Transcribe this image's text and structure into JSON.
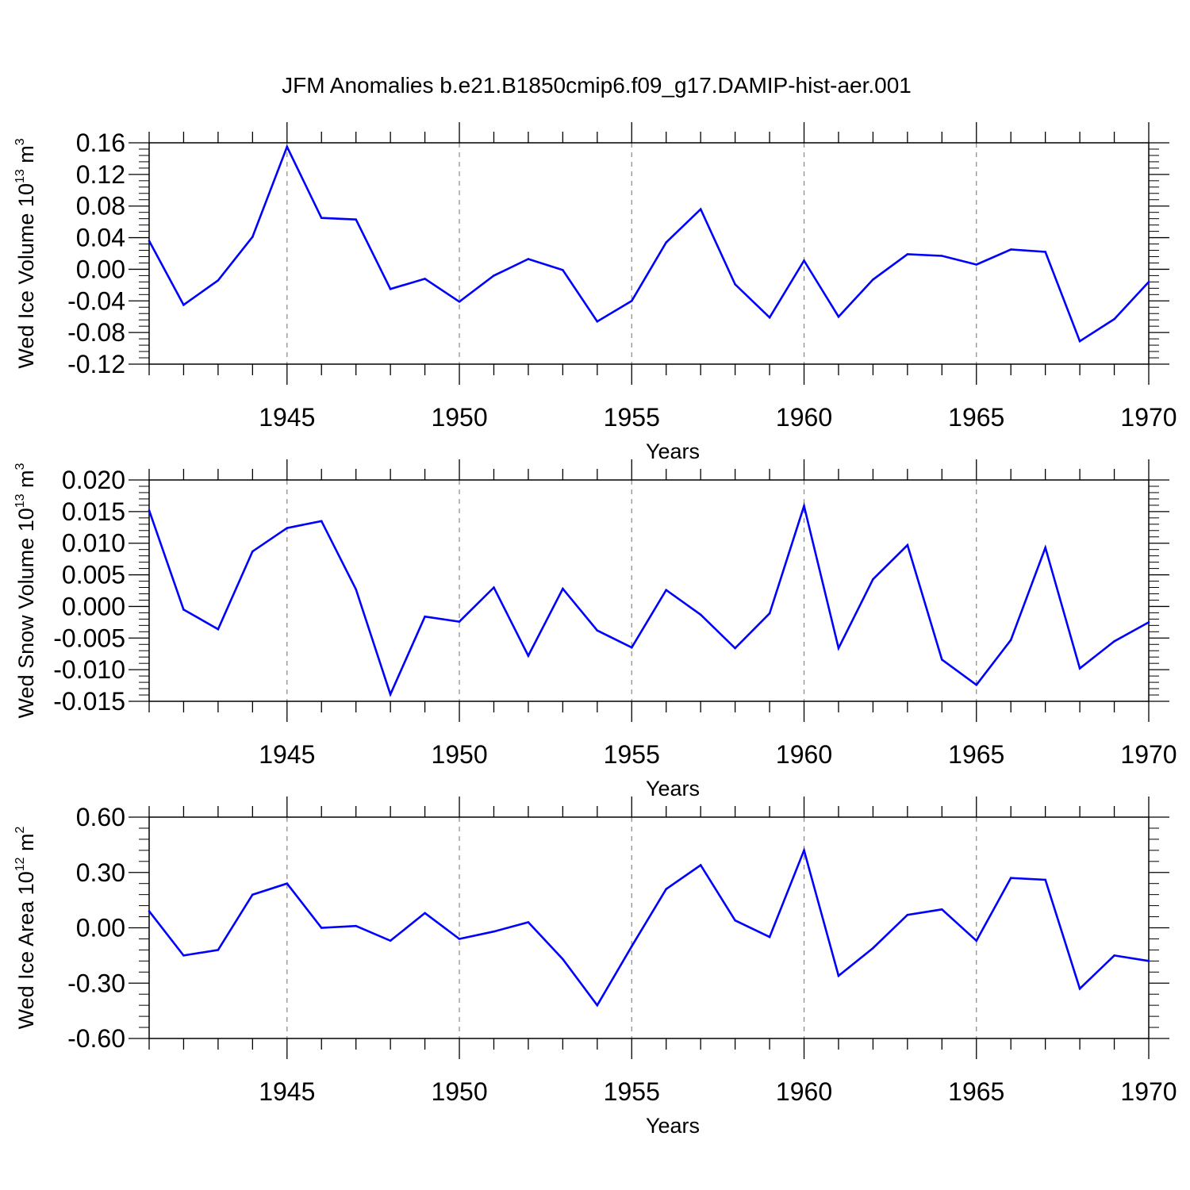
{
  "figure": {
    "title": "JFM Anomalies b.e21.B1850cmip6.f09_g17.DAMIP-hist-aer.001",
    "line_color": "#0000ff",
    "grid_color": "#888888"
  },
  "chart_data": [
    {
      "type": "line",
      "xlabel": "Years",
      "ylabel": {
        "text": "Wed Ice Volume 10",
        "exp1": "13",
        "mid": " m",
        "exp2": "3"
      },
      "xlim": [
        1941,
        1970
      ],
      "ylim": [
        -0.12,
        0.16
      ],
      "xticks": [
        1945,
        1950,
        1955,
        1960,
        1965,
        1970
      ],
      "xtick_labels": [
        "1945",
        "1950",
        "1955",
        "1960",
        "1965",
        "1970"
      ],
      "yticks": [
        -0.12,
        -0.08,
        -0.04,
        0.0,
        0.04,
        0.08,
        0.12,
        0.16
      ],
      "ytick_labels": [
        "-0.12",
        "-0.08",
        "-0.04",
        "0.00",
        "0.04",
        "0.08",
        "0.12",
        "0.16"
      ],
      "grid": "vertical dashed at major x ticks",
      "x": [
        1941,
        1942,
        1943,
        1944,
        1945,
        1946,
        1947,
        1948,
        1949,
        1950,
        1951,
        1952,
        1953,
        1954,
        1955,
        1956,
        1957,
        1958,
        1959,
        1960,
        1961,
        1962,
        1963,
        1964,
        1965,
        1966,
        1967,
        1968,
        1969,
        1970
      ],
      "y": [
        0.036,
        -0.045,
        -0.014,
        0.041,
        0.155,
        0.065,
        0.063,
        -0.025,
        -0.012,
        -0.041,
        -0.008,
        0.013,
        -0.001,
        -0.066,
        -0.04,
        0.034,
        0.076,
        -0.019,
        -0.061,
        0.011,
        -0.06,
        -0.013,
        0.019,
        0.017,
        0.006,
        0.025,
        0.022,
        -0.091,
        -0.063,
        -0.016
      ]
    },
    {
      "type": "line",
      "xlabel": "Years",
      "ylabel": {
        "text": "Wed Snow Volume 10",
        "exp1": "13",
        "mid": " m",
        "exp2": "3"
      },
      "xlim": [
        1941,
        1970
      ],
      "ylim": [
        -0.015,
        0.02
      ],
      "xticks": [
        1945,
        1950,
        1955,
        1960,
        1965,
        1970
      ],
      "xtick_labels": [
        "1945",
        "1950",
        "1955",
        "1960",
        "1965",
        "1970"
      ],
      "yticks": [
        -0.015,
        -0.01,
        -0.005,
        0.0,
        0.005,
        0.01,
        0.015,
        0.02
      ],
      "ytick_labels": [
        "-0.015",
        "-0.010",
        "-0.005",
        "0.000",
        "0.005",
        "0.010",
        "0.015",
        "0.020"
      ],
      "grid": "vertical dashed at major x ticks",
      "x": [
        1941,
        1942,
        1943,
        1944,
        1945,
        1946,
        1947,
        1948,
        1949,
        1950,
        1951,
        1952,
        1953,
        1954,
        1955,
        1956,
        1957,
        1958,
        1959,
        1960,
        1961,
        1962,
        1963,
        1964,
        1965,
        1966,
        1967,
        1968,
        1969,
        1970
      ],
      "y": [
        0.0152,
        -0.0005,
        -0.0036,
        0.0087,
        0.0124,
        0.0135,
        0.0027,
        -0.0139,
        -0.0016,
        -0.0024,
        0.003,
        -0.0078,
        0.0028,
        -0.0038,
        -0.0065,
        0.0026,
        -0.0013,
        -0.0066,
        -0.0011,
        0.0159,
        -0.0066,
        0.0043,
        0.0097,
        -0.0084,
        -0.0124,
        -0.0053,
        0.0093,
        -0.0098,
        -0.0055,
        -0.0025
      ]
    },
    {
      "type": "line",
      "xlabel": "Years",
      "ylabel": {
        "text": "Wed Ice Area 10",
        "exp1": "12",
        "mid": " m",
        "exp2": "2"
      },
      "xlim": [
        1941,
        1970
      ],
      "ylim": [
        -0.6,
        0.6
      ],
      "xticks": [
        1945,
        1950,
        1955,
        1960,
        1965,
        1970
      ],
      "xtick_labels": [
        "1945",
        "1950",
        "1955",
        "1960",
        "1965",
        "1970"
      ],
      "yticks": [
        -0.6,
        -0.3,
        0.0,
        0.3,
        0.6
      ],
      "ytick_labels": [
        "-0.60",
        "-0.30",
        "0.00",
        "0.30",
        "0.60"
      ],
      "grid": "vertical dashed at major x ticks",
      "x": [
        1941,
        1942,
        1943,
        1944,
        1945,
        1946,
        1947,
        1948,
        1949,
        1950,
        1951,
        1952,
        1953,
        1954,
        1955,
        1956,
        1957,
        1958,
        1959,
        1960,
        1961,
        1962,
        1963,
        1964,
        1965,
        1966,
        1967,
        1968,
        1969,
        1970
      ],
      "y": [
        0.09,
        -0.15,
        -0.12,
        0.18,
        0.24,
        0.0,
        0.01,
        -0.07,
        0.08,
        -0.06,
        -0.02,
        0.03,
        -0.17,
        -0.42,
        -0.1,
        0.21,
        0.34,
        0.04,
        -0.05,
        0.42,
        -0.26,
        -0.11,
        0.07,
        0.1,
        -0.07,
        0.27,
        0.26,
        -0.33,
        -0.15,
        -0.18
      ]
    }
  ]
}
